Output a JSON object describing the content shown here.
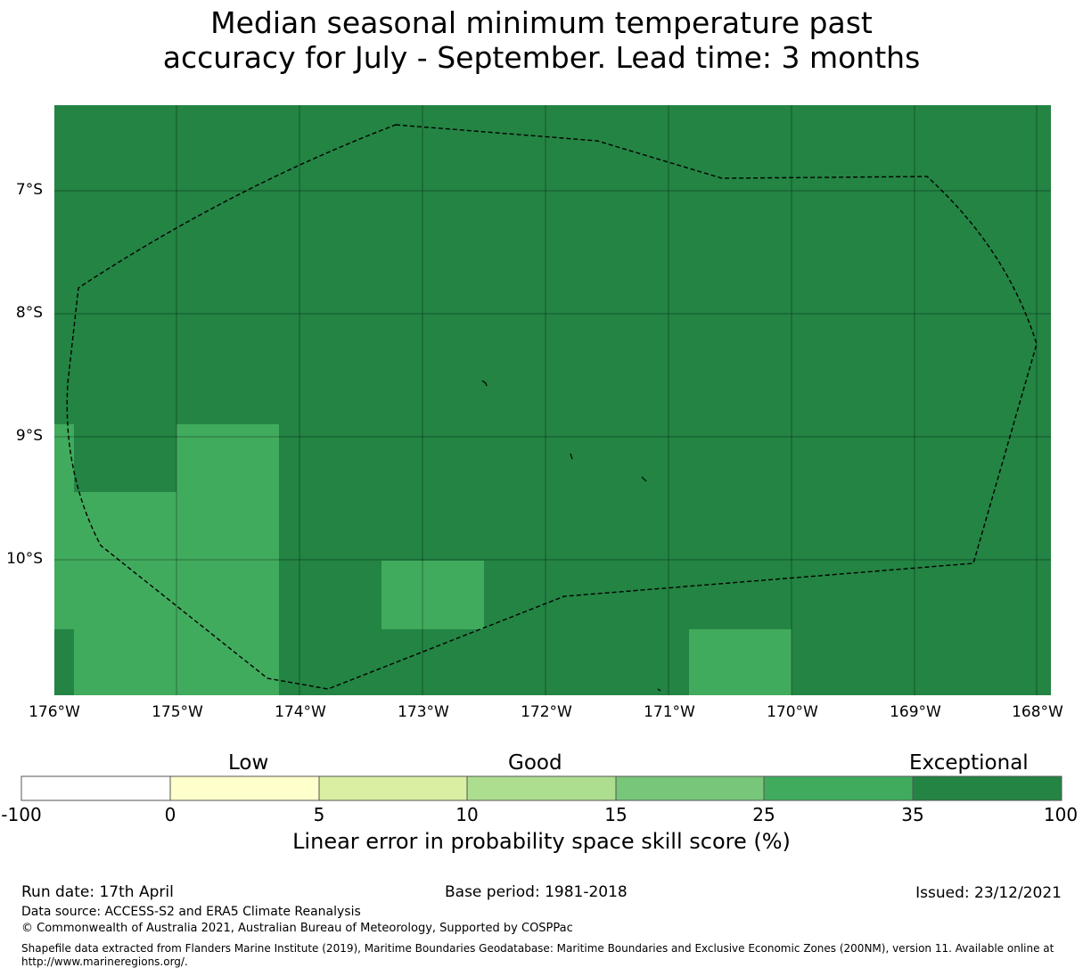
{
  "title": {
    "line1": "Median seasonal minimum temperature past",
    "line2": "accuracy for July - September. Lead time: 3 months"
  },
  "map": {
    "lat_labels": [
      "7°S",
      "8°S",
      "9°S",
      "10°S"
    ],
    "lon_labels": [
      "176°W",
      "175°W",
      "174°W",
      "173°W",
      "172°W",
      "171°W",
      "170°W",
      "169°W",
      "168°W"
    ],
    "background_color": "#238443",
    "cell_color": "#41ab5d",
    "boundary": "dashed EEZ outline",
    "legend_category_shown": "Exceptional (35-100) with patches of 25-35"
  },
  "colorbar": {
    "words": [
      "Low",
      "Good",
      "Exceptional"
    ],
    "ticks": [
      "-100",
      "0",
      "5",
      "10",
      "15",
      "25",
      "35",
      "100"
    ],
    "colors": [
      "#ffffff",
      "#ffffcc",
      "#d9f0a3",
      "#addd8e",
      "#78c679",
      "#41ab5d",
      "#238443"
    ],
    "label": "Linear error in probability space skill score (%)"
  },
  "footer": {
    "run_date": "Run date: 17th April",
    "base_period": "Base period: 1981-2018",
    "issued": "Issued: 23/12/2021",
    "data_source": "Data source: ACCESS-S2 and ERA5 Climate Reanalysis",
    "copyright": "© Commonwealth of Australia 2021, Australian Bureau of Meteorology, Supported by COSPPac",
    "shapefile_line1": "Shapefile data extracted from Flanders Marine Institute (2019), Maritime Boundaries Geodatabase: Maritime Boundaries and Exclusive Economic Zones (200NM), version 11. Available online at",
    "shapefile_line2": "http://www.marineregions.org/."
  }
}
